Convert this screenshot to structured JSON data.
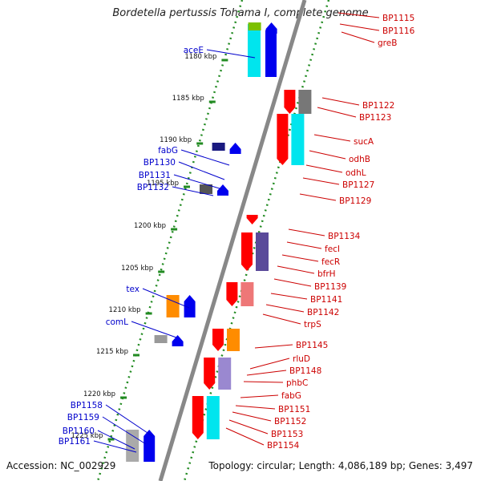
{
  "title": "Bordetella pertussis Tohama I, complete genome",
  "footer": {
    "accession": "Accession: NC_002929",
    "summary": "Topology: circular; Length: 4,086,189 bp; Genes: 3,497"
  },
  "colors": {
    "forward_label": "#0000cc",
    "reverse_label": "#cc0000",
    "backbone": "#888888",
    "ticks": "#228b22"
  },
  "ticks": [
    {
      "label": "1180 kbp"
    },
    {
      "label": "1185 kbp"
    },
    {
      "label": "1190 kbp"
    },
    {
      "label": "1195 kbp"
    },
    {
      "label": "1200 kbp"
    },
    {
      "label": "1205 kbp"
    },
    {
      "label": "1210 kbp"
    },
    {
      "label": "1215 kbp"
    },
    {
      "label": "1220 kbp"
    },
    {
      "label": "1225 kbp"
    }
  ],
  "forward_genes": [
    {
      "name": "aceE"
    },
    {
      "name": "fabG"
    },
    {
      "name": "BP1130"
    },
    {
      "name": "BP1131"
    },
    {
      "name": "BP1132"
    },
    {
      "name": "tex"
    },
    {
      "name": "comL"
    },
    {
      "name": "BP1158"
    },
    {
      "name": "BP1159"
    },
    {
      "name": "BP1160"
    },
    {
      "name": "BP1161"
    }
  ],
  "reverse_genes": [
    {
      "name": "BP1115"
    },
    {
      "name": "BP1116"
    },
    {
      "name": "greB"
    },
    {
      "name": "BP1122"
    },
    {
      "name": "BP1123"
    },
    {
      "name": "sucA"
    },
    {
      "name": "odhB"
    },
    {
      "name": "odhL"
    },
    {
      "name": "BP1127"
    },
    {
      "name": "BP1129"
    },
    {
      "name": "BP1134"
    },
    {
      "name": "fecI"
    },
    {
      "name": "fecR"
    },
    {
      "name": "bfrH"
    },
    {
      "name": "BP1139"
    },
    {
      "name": "BP1141"
    },
    {
      "name": "BP1142"
    },
    {
      "name": "trpS"
    },
    {
      "name": "BP1145"
    },
    {
      "name": "rluD"
    },
    {
      "name": "BP1148"
    },
    {
      "name": "phbC"
    },
    {
      "name": "fabG"
    },
    {
      "name": "BP1151"
    },
    {
      "name": "BP1152"
    },
    {
      "name": "BP1153"
    },
    {
      "name": "BP1154"
    }
  ]
}
